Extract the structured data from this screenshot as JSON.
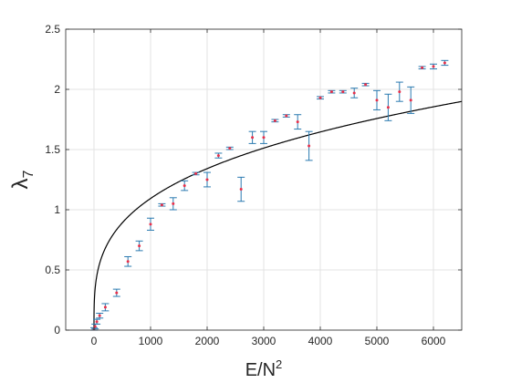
{
  "chart_data": {
    "type": "scatter",
    "xlabel": "E/N",
    "xlabel_sup": "2",
    "ylabel": "λ",
    "ylabel_sub": "7",
    "xlim": [
      -500,
      6500
    ],
    "ylim": [
      0,
      2.5
    ],
    "x_ticks": [
      0,
      1000,
      2000,
      3000,
      4000,
      5000,
      6000
    ],
    "y_ticks": [
      0,
      0.5,
      1,
      1.5,
      2,
      2.5
    ],
    "x_tick_labels": [
      "0",
      "1000",
      "2000",
      "3000",
      "4000",
      "5000",
      "6000"
    ],
    "y_tick_labels": [
      "0",
      "0.5",
      "1",
      "1.5",
      "2",
      "2.5"
    ],
    "grid": true,
    "series": [
      {
        "kind": "errorbar",
        "points": [
          {
            "x": 0,
            "y": 0.01,
            "err": 0.01
          },
          {
            "x": 20,
            "y": 0.03,
            "err": 0.02
          },
          {
            "x": 50,
            "y": 0.07,
            "err": 0.02
          },
          {
            "x": 100,
            "y": 0.12,
            "err": 0.02
          },
          {
            "x": 200,
            "y": 0.19,
            "err": 0.03
          },
          {
            "x": 400,
            "y": 0.31,
            "err": 0.03
          },
          {
            "x": 600,
            "y": 0.57,
            "err": 0.04
          },
          {
            "x": 800,
            "y": 0.7,
            "err": 0.04
          },
          {
            "x": 1000,
            "y": 0.88,
            "err": 0.05
          },
          {
            "x": 1200,
            "y": 1.04,
            "err": 0.01
          },
          {
            "x": 1400,
            "y": 1.05,
            "err": 0.05
          },
          {
            "x": 1600,
            "y": 1.2,
            "err": 0.04
          },
          {
            "x": 1800,
            "y": 1.3,
            "err": 0.01
          },
          {
            "x": 2000,
            "y": 1.25,
            "err": 0.06
          },
          {
            "x": 2200,
            "y": 1.45,
            "err": 0.02
          },
          {
            "x": 2400,
            "y": 1.51,
            "err": 0.01
          },
          {
            "x": 2600,
            "y": 1.17,
            "err": 0.1
          },
          {
            "x": 2800,
            "y": 1.6,
            "err": 0.05
          },
          {
            "x": 3000,
            "y": 1.6,
            "err": 0.05
          },
          {
            "x": 3200,
            "y": 1.74,
            "err": 0.01
          },
          {
            "x": 3400,
            "y": 1.78,
            "err": 0.01
          },
          {
            "x": 3600,
            "y": 1.73,
            "err": 0.06
          },
          {
            "x": 3800,
            "y": 1.53,
            "err": 0.12
          },
          {
            "x": 4000,
            "y": 1.93,
            "err": 0.01
          },
          {
            "x": 4200,
            "y": 1.98,
            "err": 0.01
          },
          {
            "x": 4400,
            "y": 1.98,
            "err": 0.01
          },
          {
            "x": 4600,
            "y": 1.97,
            "err": 0.04
          },
          {
            "x": 4800,
            "y": 2.04,
            "err": 0.01
          },
          {
            "x": 5000,
            "y": 1.91,
            "err": 0.08
          },
          {
            "x": 5200,
            "y": 1.85,
            "err": 0.11
          },
          {
            "x": 5400,
            "y": 1.98,
            "err": 0.08
          },
          {
            "x": 5600,
            "y": 1.91,
            "err": 0.11
          },
          {
            "x": 5800,
            "y": 2.18,
            "err": 0.01
          },
          {
            "x": 6000,
            "y": 2.19,
            "err": 0.02
          },
          {
            "x": 6200,
            "y": 2.22,
            "err": 0.02
          }
        ],
        "errorbar_color": "#2a7ab0",
        "marker_color": "#e8304a"
      },
      {
        "kind": "line",
        "form": "y = 0.1425 * x^0.295",
        "color": "#000000"
      }
    ]
  }
}
